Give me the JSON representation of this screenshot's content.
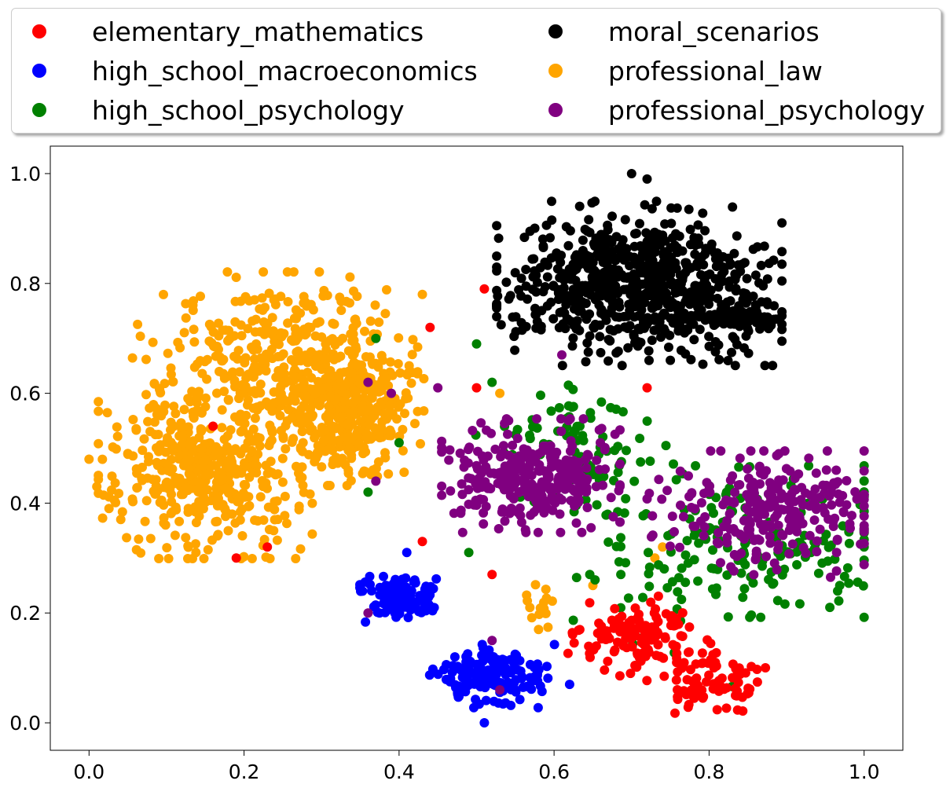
{
  "chart_data": {
    "type": "scatter",
    "title": "",
    "xlabel": "",
    "ylabel": "",
    "xlim": [
      -0.05,
      1.05
    ],
    "ylim": [
      -0.05,
      1.05
    ],
    "xticks": [
      "0.0",
      "0.2",
      "0.4",
      "0.6",
      "0.8",
      "1.0"
    ],
    "yticks": [
      "0.0",
      "0.2",
      "0.4",
      "0.6",
      "0.8",
      "1.0"
    ],
    "grid": false,
    "legend_placement": "top, outside plot, two columns",
    "series": [
      {
        "name": "elementary_mathematics",
        "color": "#ff0000",
        "clusters": [
          {
            "center": [
              0.71,
              0.15
            ],
            "spread": [
              0.04,
              0.035
            ],
            "n": 130
          },
          {
            "center": [
              0.81,
              0.07
            ],
            "spread": [
              0.03,
              0.025
            ],
            "n": 80
          }
        ],
        "points": [
          [
            0.19,
            0.3
          ],
          [
            0.23,
            0.32
          ],
          [
            0.51,
            0.79
          ],
          [
            0.72,
            0.61
          ],
          [
            0.5,
            0.61
          ],
          [
            0.52,
            0.27
          ],
          [
            0.43,
            0.33
          ],
          [
            0.44,
            0.72
          ],
          [
            0.16,
            0.54
          ]
        ]
      },
      {
        "name": "high_school_macroeconomics",
        "color": "#0000ff",
        "clusters": [
          {
            "center": [
              0.4,
              0.225
            ],
            "spread": [
              0.022,
              0.018
            ],
            "n": 120
          },
          {
            "center": [
              0.52,
              0.085
            ],
            "spread": [
              0.035,
              0.025
            ],
            "n": 150
          }
        ],
        "points": [
          [
            0.51,
            0.0
          ],
          [
            0.62,
            0.07
          ],
          [
            0.41,
            0.31
          ]
        ]
      },
      {
        "name": "high_school_psychology",
        "color": "#008000",
        "clusters": [
          {
            "center": [
              0.63,
              0.5
            ],
            "spread": [
              0.06,
              0.06
            ],
            "n": 90
          },
          {
            "center": [
              0.87,
              0.33
            ],
            "spread": [
              0.08,
              0.06
            ],
            "n": 150
          },
          {
            "center": [
              0.75,
              0.25
            ],
            "spread": [
              0.06,
              0.08
            ],
            "n": 50
          }
        ],
        "points": [
          [
            0.5,
            0.69
          ],
          [
            0.49,
            0.31
          ],
          [
            0.4,
            0.51
          ],
          [
            0.36,
            0.42
          ],
          [
            0.37,
            0.7
          ],
          [
            0.52,
            0.62
          ]
        ]
      },
      {
        "name": "moral_scenarios",
        "color": "#000000",
        "clusters": [
          {
            "center": [
              0.71,
              0.8
            ],
            "spread": [
              0.08,
              0.065
            ],
            "n": 700
          },
          {
            "center": [
              0.84,
              0.74
            ],
            "spread": [
              0.03,
              0.02
            ],
            "n": 60
          }
        ],
        "points": [
          [
            0.7,
            1.0
          ],
          [
            0.72,
            0.99
          ],
          [
            0.75,
            0.66
          ]
        ]
      },
      {
        "name": "professional_law",
        "color": "#ffa500",
        "clusters": [
          {
            "center": [
              0.15,
              0.46
            ],
            "spread": [
              0.06,
              0.07
            ],
            "n": 450
          },
          {
            "center": [
              0.34,
              0.57
            ],
            "spread": [
              0.04,
              0.06
            ],
            "n": 350
          },
          {
            "center": [
              0.24,
              0.66
            ],
            "spread": [
              0.08,
              0.07
            ],
            "n": 350
          },
          {
            "center": [
              0.58,
              0.22
            ],
            "spread": [
              0.01,
              0.02
            ],
            "n": 15
          }
        ],
        "points": [
          [
            0.0,
            0.48
          ],
          [
            0.01,
            0.43
          ],
          [
            0.43,
            0.78
          ],
          [
            0.53,
            0.6
          ],
          [
            0.65,
            0.25
          ],
          [
            0.73,
            0.3
          ],
          [
            0.74,
            0.32
          ],
          [
            0.55,
            0.11
          ],
          [
            0.58,
            0.17
          ]
        ]
      },
      {
        "name": "professional_psychology",
        "color": "#800080",
        "clusters": [
          {
            "center": [
              0.57,
              0.45
            ],
            "spread": [
              0.05,
              0.045
            ],
            "n": 300
          },
          {
            "center": [
              0.88,
              0.38
            ],
            "spread": [
              0.07,
              0.05
            ],
            "n": 250
          }
        ],
        "points": [
          [
            0.36,
            0.62
          ],
          [
            0.37,
            0.44
          ],
          [
            0.39,
            0.6
          ],
          [
            0.45,
            0.61
          ],
          [
            0.52,
            0.15
          ],
          [
            0.61,
            0.67
          ],
          [
            0.36,
            0.2
          ],
          [
            0.53,
            0.06
          ],
          [
            0.89,
            0.49
          ]
        ]
      }
    ]
  }
}
